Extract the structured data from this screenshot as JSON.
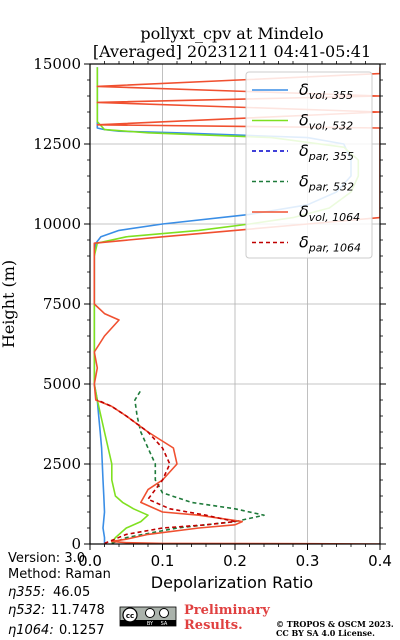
{
  "chart_data": {
    "type": "line",
    "title": "pollyxt_cpv at Mindelo",
    "subtitle": "[Averaged] 20231211 04:41-05:41",
    "xlabel": "Depolarization Ratio",
    "ylabel": "Height (m)",
    "xlim": [
      0,
      0.4
    ],
    "ylim": [
      0,
      15000
    ],
    "xticks": [
      "0.0",
      "0.1",
      "0.2",
      "0.3",
      "0.4"
    ],
    "yticks": [
      "0",
      "2500",
      "5000",
      "7500",
      "10000",
      "12500",
      "15000"
    ],
    "grid": true,
    "legend_position": "top-right",
    "series": [
      {
        "name_base": "δ",
        "name_sub": "vol, 355",
        "color": "#3a8ee6",
        "dash": "solid",
        "points": [
          [
            0.02,
            20
          ],
          [
            0.02,
            200
          ],
          [
            0.018,
            500
          ],
          [
            0.02,
            1000
          ],
          [
            0.019,
            1500
          ],
          [
            0.018,
            2000
          ],
          [
            0.017,
            2500
          ],
          [
            0.016,
            3000
          ],
          [
            0.014,
            3500
          ],
          [
            0.012,
            4000
          ],
          [
            0.01,
            4500
          ],
          [
            0.006,
            5000
          ],
          [
            0.006,
            6000
          ],
          [
            0.006,
            7000
          ],
          [
            0.006,
            8000
          ],
          [
            0.006,
            9000
          ],
          [
            0.008,
            9400
          ],
          [
            0.015,
            9600
          ],
          [
            0.04,
            9800
          ],
          [
            0.1,
            10000
          ],
          [
            0.22,
            10300
          ],
          [
            0.3,
            10600
          ],
          [
            0.34,
            11000
          ],
          [
            0.36,
            11500
          ],
          [
            0.36,
            12000
          ],
          [
            0.35,
            12500
          ],
          [
            0.3,
            12700
          ],
          [
            0.12,
            12850
          ],
          [
            0.04,
            12900
          ],
          [
            0.02,
            12950
          ],
          [
            0.01,
            13000
          ],
          [
            0.01,
            14900
          ]
        ]
      },
      {
        "name_base": "δ",
        "name_sub": "vol, 532",
        "color": "#7fe020",
        "dash": "solid",
        "points": [
          [
            0.03,
            20
          ],
          [
            0.035,
            200
          ],
          [
            0.05,
            500
          ],
          [
            0.07,
            700
          ],
          [
            0.08,
            900
          ],
          [
            0.06,
            1100
          ],
          [
            0.045,
            1300
          ],
          [
            0.035,
            1500
          ],
          [
            0.03,
            2000
          ],
          [
            0.03,
            2500
          ],
          [
            0.02,
            3500
          ],
          [
            0.01,
            4500
          ],
          [
            0.006,
            5000
          ],
          [
            0.006,
            6000
          ],
          [
            0.006,
            7000
          ],
          [
            0.006,
            8000
          ],
          [
            0.006,
            9000
          ],
          [
            0.01,
            9400
          ],
          [
            0.05,
            9600
          ],
          [
            0.15,
            9800
          ],
          [
            0.22,
            10000
          ],
          [
            0.28,
            10200
          ],
          [
            0.33,
            10500
          ],
          [
            0.36,
            11000
          ],
          [
            0.37,
            11500
          ],
          [
            0.37,
            12000
          ],
          [
            0.35,
            12400
          ],
          [
            0.25,
            12700
          ],
          [
            0.08,
            12850
          ],
          [
            0.02,
            12950
          ],
          [
            0.01,
            13200
          ],
          [
            0.01,
            14900
          ]
        ]
      },
      {
        "name_base": "δ",
        "name_sub": "par, 355",
        "color": "#0000cc",
        "dash": "4,3",
        "points": []
      },
      {
        "name_base": "δ",
        "name_sub": "par, 532",
        "color": "#1e7a3a",
        "dash": "4,3",
        "points": [
          [
            0.03,
            20
          ],
          [
            0.05,
            200
          ],
          [
            0.12,
            500
          ],
          [
            0.2,
            700
          ],
          [
            0.24,
            900
          ],
          [
            0.2,
            1100
          ],
          [
            0.14,
            1300
          ],
          [
            0.1,
            1600
          ],
          [
            0.09,
            2000
          ],
          [
            0.09,
            2500
          ],
          [
            0.08,
            3000
          ],
          [
            0.07,
            3500
          ],
          [
            0.065,
            4000
          ],
          [
            0.062,
            4500
          ],
          [
            0.07,
            4800
          ],
          [
            0.07,
            4850
          ]
        ]
      },
      {
        "name_base": "δ",
        "name_sub": "vol, 1064",
        "color": "#f05030",
        "dash": "solid",
        "points": [
          [
            0.4,
            0
          ],
          [
            0.3,
            10
          ],
          [
            0.1,
            20
          ],
          [
            0.05,
            40
          ],
          [
            0.03,
            80
          ],
          [
            0.05,
            150
          ],
          [
            0.08,
            300
          ],
          [
            0.15,
            500
          ],
          [
            0.2,
            600
          ],
          [
            0.21,
            700
          ],
          [
            0.15,
            900
          ],
          [
            0.1,
            1000
          ],
          [
            0.07,
            1300
          ],
          [
            0.08,
            1700
          ],
          [
            0.1,
            2000
          ],
          [
            0.12,
            2500
          ],
          [
            0.115,
            3000
          ],
          [
            0.08,
            3500
          ],
          [
            0.05,
            4000
          ],
          [
            0.03,
            4300
          ],
          [
            0.008,
            4500
          ],
          [
            0.006,
            5000
          ],
          [
            0.01,
            5500
          ],
          [
            0.006,
            6000
          ],
          [
            0.02,
            6500
          ],
          [
            0.04,
            7000
          ],
          [
            0.02,
            7200
          ],
          [
            0.006,
            7500
          ],
          [
            0.006,
            8000
          ],
          [
            0.006,
            9000
          ],
          [
            0.006,
            9400
          ],
          [
            0.1,
            9600
          ],
          [
            0.2,
            9800
          ],
          [
            0.3,
            10000
          ],
          [
            0.4,
            10200
          ],
          [
            0.4,
            11000
          ],
          [
            0.4,
            13000
          ],
          [
            0.01,
            13100
          ],
          [
            0.4,
            13500
          ],
          [
            0.01,
            13800
          ],
          [
            0.4,
            14000
          ],
          [
            0.01,
            14300
          ],
          [
            0.4,
            14700
          ],
          [
            0.4,
            14900
          ]
        ]
      },
      {
        "name_base": "δ",
        "name_sub": "par, 1064",
        "color": "#c00000",
        "dash": "4,3",
        "points": [
          [
            0.02,
            20
          ],
          [
            0.05,
            300
          ],
          [
            0.1,
            500
          ],
          [
            0.16,
            600
          ],
          [
            0.2,
            700
          ],
          [
            0.16,
            900
          ],
          [
            0.11,
            1100
          ],
          [
            0.08,
            1400
          ],
          [
            0.09,
            1700
          ],
          [
            0.1,
            2000
          ],
          [
            0.11,
            2500
          ],
          [
            0.1,
            3000
          ],
          [
            0.08,
            3500
          ],
          [
            0.05,
            4000
          ],
          [
            0.03,
            4300
          ],
          [
            0.01,
            4500
          ]
        ]
      }
    ]
  },
  "info": {
    "version": "Version: 3.0",
    "method": "Method: Raman",
    "eta355_label": "η355:",
    "eta355_value": "46.05",
    "eta532_label": "η532:",
    "eta532_value": "11.7478",
    "eta1064_label": "η1064:",
    "eta1064_value": "0.1257"
  },
  "license": {
    "cc_text": "cc",
    "by_text": "BY",
    "sa_text": "SA",
    "preliminary": "Preliminary",
    "results": "Results.",
    "copyright": "© TROPOS & OSCM 2023.",
    "license_text": "CC BY SA 4.0 License."
  }
}
